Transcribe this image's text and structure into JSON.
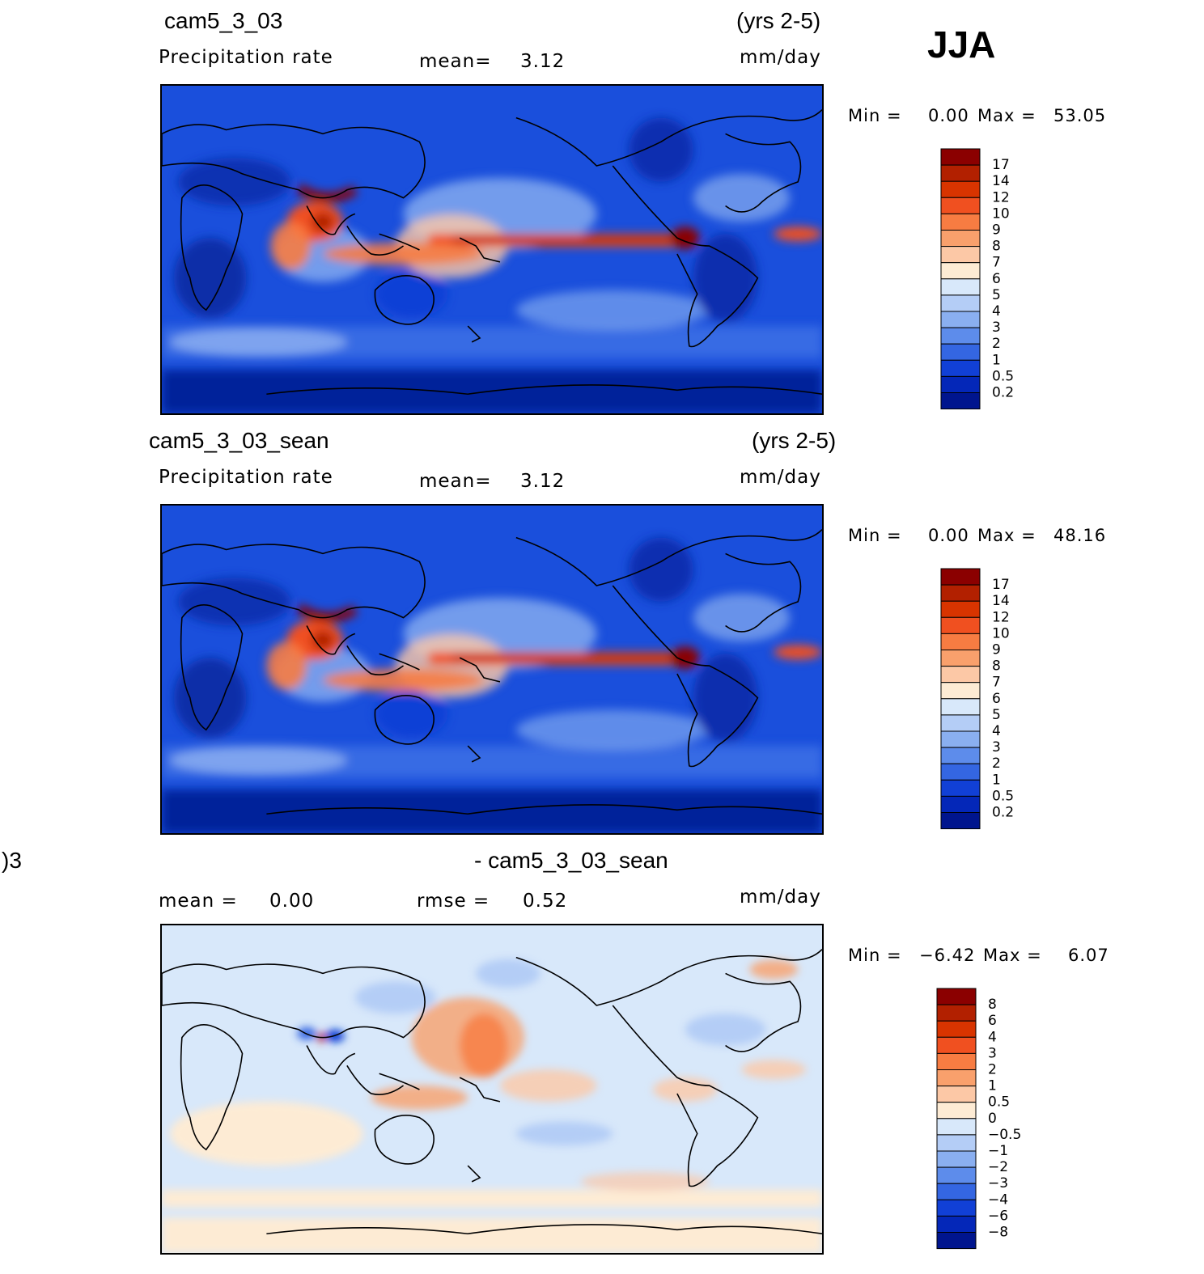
{
  "season": "JJA",
  "units": "mm/day",
  "panels": [
    {
      "case": "cam5_3_03",
      "years": "(yrs 2-5)",
      "variable": "Precipitation rate",
      "mean_label": "mean=",
      "mean_value": "3.12",
      "min_label": "Min =",
      "min_value": "0.00",
      "max_label": "Max =",
      "max_value": "53.05",
      "colorbar": {
        "labels": [
          "17",
          "14",
          "12",
          "10",
          "9",
          "8",
          "7",
          "6",
          "5",
          "4",
          "3",
          "2",
          "1",
          "0.5",
          "0.2"
        ],
        "colors": [
          "#8b0000",
          "#b22000",
          "#d83400",
          "#f05020",
          "#f77c42",
          "#f9a06c",
          "#fcc8a6",
          "#fdebd4",
          "#d8e8fa",
          "#b4cdf6",
          "#8aaff0",
          "#5d8ceb",
          "#3466e2",
          "#1140d6",
          "#0427b8",
          "#00158e"
        ]
      }
    },
    {
      "case": "cam5_3_03_sean",
      "years": "(yrs 2-5)",
      "variable": "Precipitation rate",
      "mean_label": "mean=",
      "mean_value": "3.12",
      "min_label": "Min =",
      "min_value": "0.00",
      "max_label": "Max =",
      "max_value": "48.16",
      "colorbar": {
        "labels": [
          "17",
          "14",
          "12",
          "10",
          "9",
          "8",
          "7",
          "6",
          "5",
          "4",
          "3",
          "2",
          "1",
          "0.5",
          "0.2"
        ],
        "colors": [
          "#8b0000",
          "#b22000",
          "#d83400",
          "#f05020",
          "#f77c42",
          "#f9a06c",
          "#fcc8a6",
          "#fdebd4",
          "#d8e8fa",
          "#b4cdf6",
          "#8aaff0",
          "#5d8ceb",
          "#3466e2",
          "#1140d6",
          "#0427b8",
          "#00158e"
        ]
      }
    },
    {
      "title_left": ")3",
      "title_right": "- cam5_3_03_sean",
      "mean_label": "mean =",
      "mean_value": "0.00",
      "rmse_label": "rmse =",
      "rmse_value": "0.52",
      "min_label": "Min =",
      "min_value": "−6.42",
      "max_label": "Max =",
      "max_value": "6.07",
      "colorbar": {
        "labels": [
          "8",
          "6",
          "4",
          "3",
          "2",
          "1",
          "0.5",
          "0",
          "−0.5",
          "−1",
          "−2",
          "−3",
          "−4",
          "−6",
          "−8"
        ],
        "colors": [
          "#8b0000",
          "#b22000",
          "#d83400",
          "#f05020",
          "#f77c42",
          "#f9a06c",
          "#fcc8a6",
          "#fdebd4",
          "#d8e8fa",
          "#b4cdf6",
          "#8aaff0",
          "#5d8ceb",
          "#3466e2",
          "#1140d6",
          "#0427b8",
          "#00158e"
        ]
      }
    }
  ]
}
